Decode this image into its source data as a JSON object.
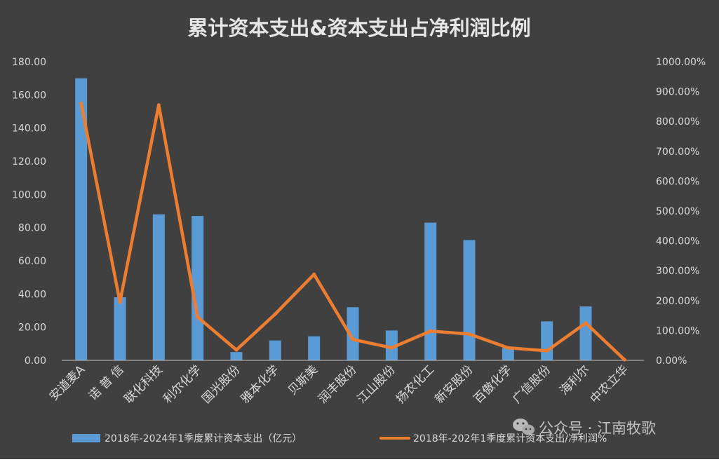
{
  "chart_data": {
    "type": "bar",
    "title": "累计资本支出&资本支出占净利润比例",
    "categories": [
      "安道麦A",
      "诺 普 信",
      "联化科技",
      "利尔化学",
      "国光股份",
      "雅本化学",
      "贝斯美",
      "润丰股份",
      "江山股份",
      "扬农化工",
      "新安股份",
      "百傲化学",
      "广信股份",
      "海利尔",
      "中农立华"
    ],
    "series": [
      {
        "name": "2018年-2024年1季度累计资本支出（亿元）",
        "type": "bar",
        "axis": "left",
        "color": "#5b9bd5",
        "values": [
          170,
          38,
          88,
          87,
          5,
          12,
          14.5,
          32,
          18,
          83,
          72.5,
          7.5,
          23.5,
          32.5,
          0.2
        ]
      },
      {
        "name": "2018年-202年1季度累计资本支出/净利润%",
        "type": "line",
        "axis": "right",
        "color": "#ed7d31",
        "values": [
          860,
          195,
          855,
          145,
          35,
          155,
          288,
          70,
          42,
          98,
          88,
          42,
          32,
          125,
          2
        ]
      }
    ],
    "y_left": {
      "min": 0,
      "max": 180,
      "step": 20,
      "ticks": [
        "0.00",
        "20.00",
        "40.00",
        "60.00",
        "80.00",
        "100.00",
        "120.00",
        "140.00",
        "160.00",
        "180.00"
      ]
    },
    "y_right": {
      "min": 0,
      "max": 1000,
      "step": 100,
      "ticks": [
        "0.00%",
        "100.00%",
        "200.00%",
        "300.00%",
        "400.00%",
        "500.00%",
        "600.00%",
        "700.00%",
        "800.00%",
        "900.00%",
        "1000.00%"
      ]
    },
    "grid": false,
    "legend_position": "bottom",
    "watermark": "公众号 · 江南牧歌",
    "colors": {
      "background": "#404040",
      "text": "#d9d9d9",
      "axis": "#bfbfbf"
    }
  }
}
